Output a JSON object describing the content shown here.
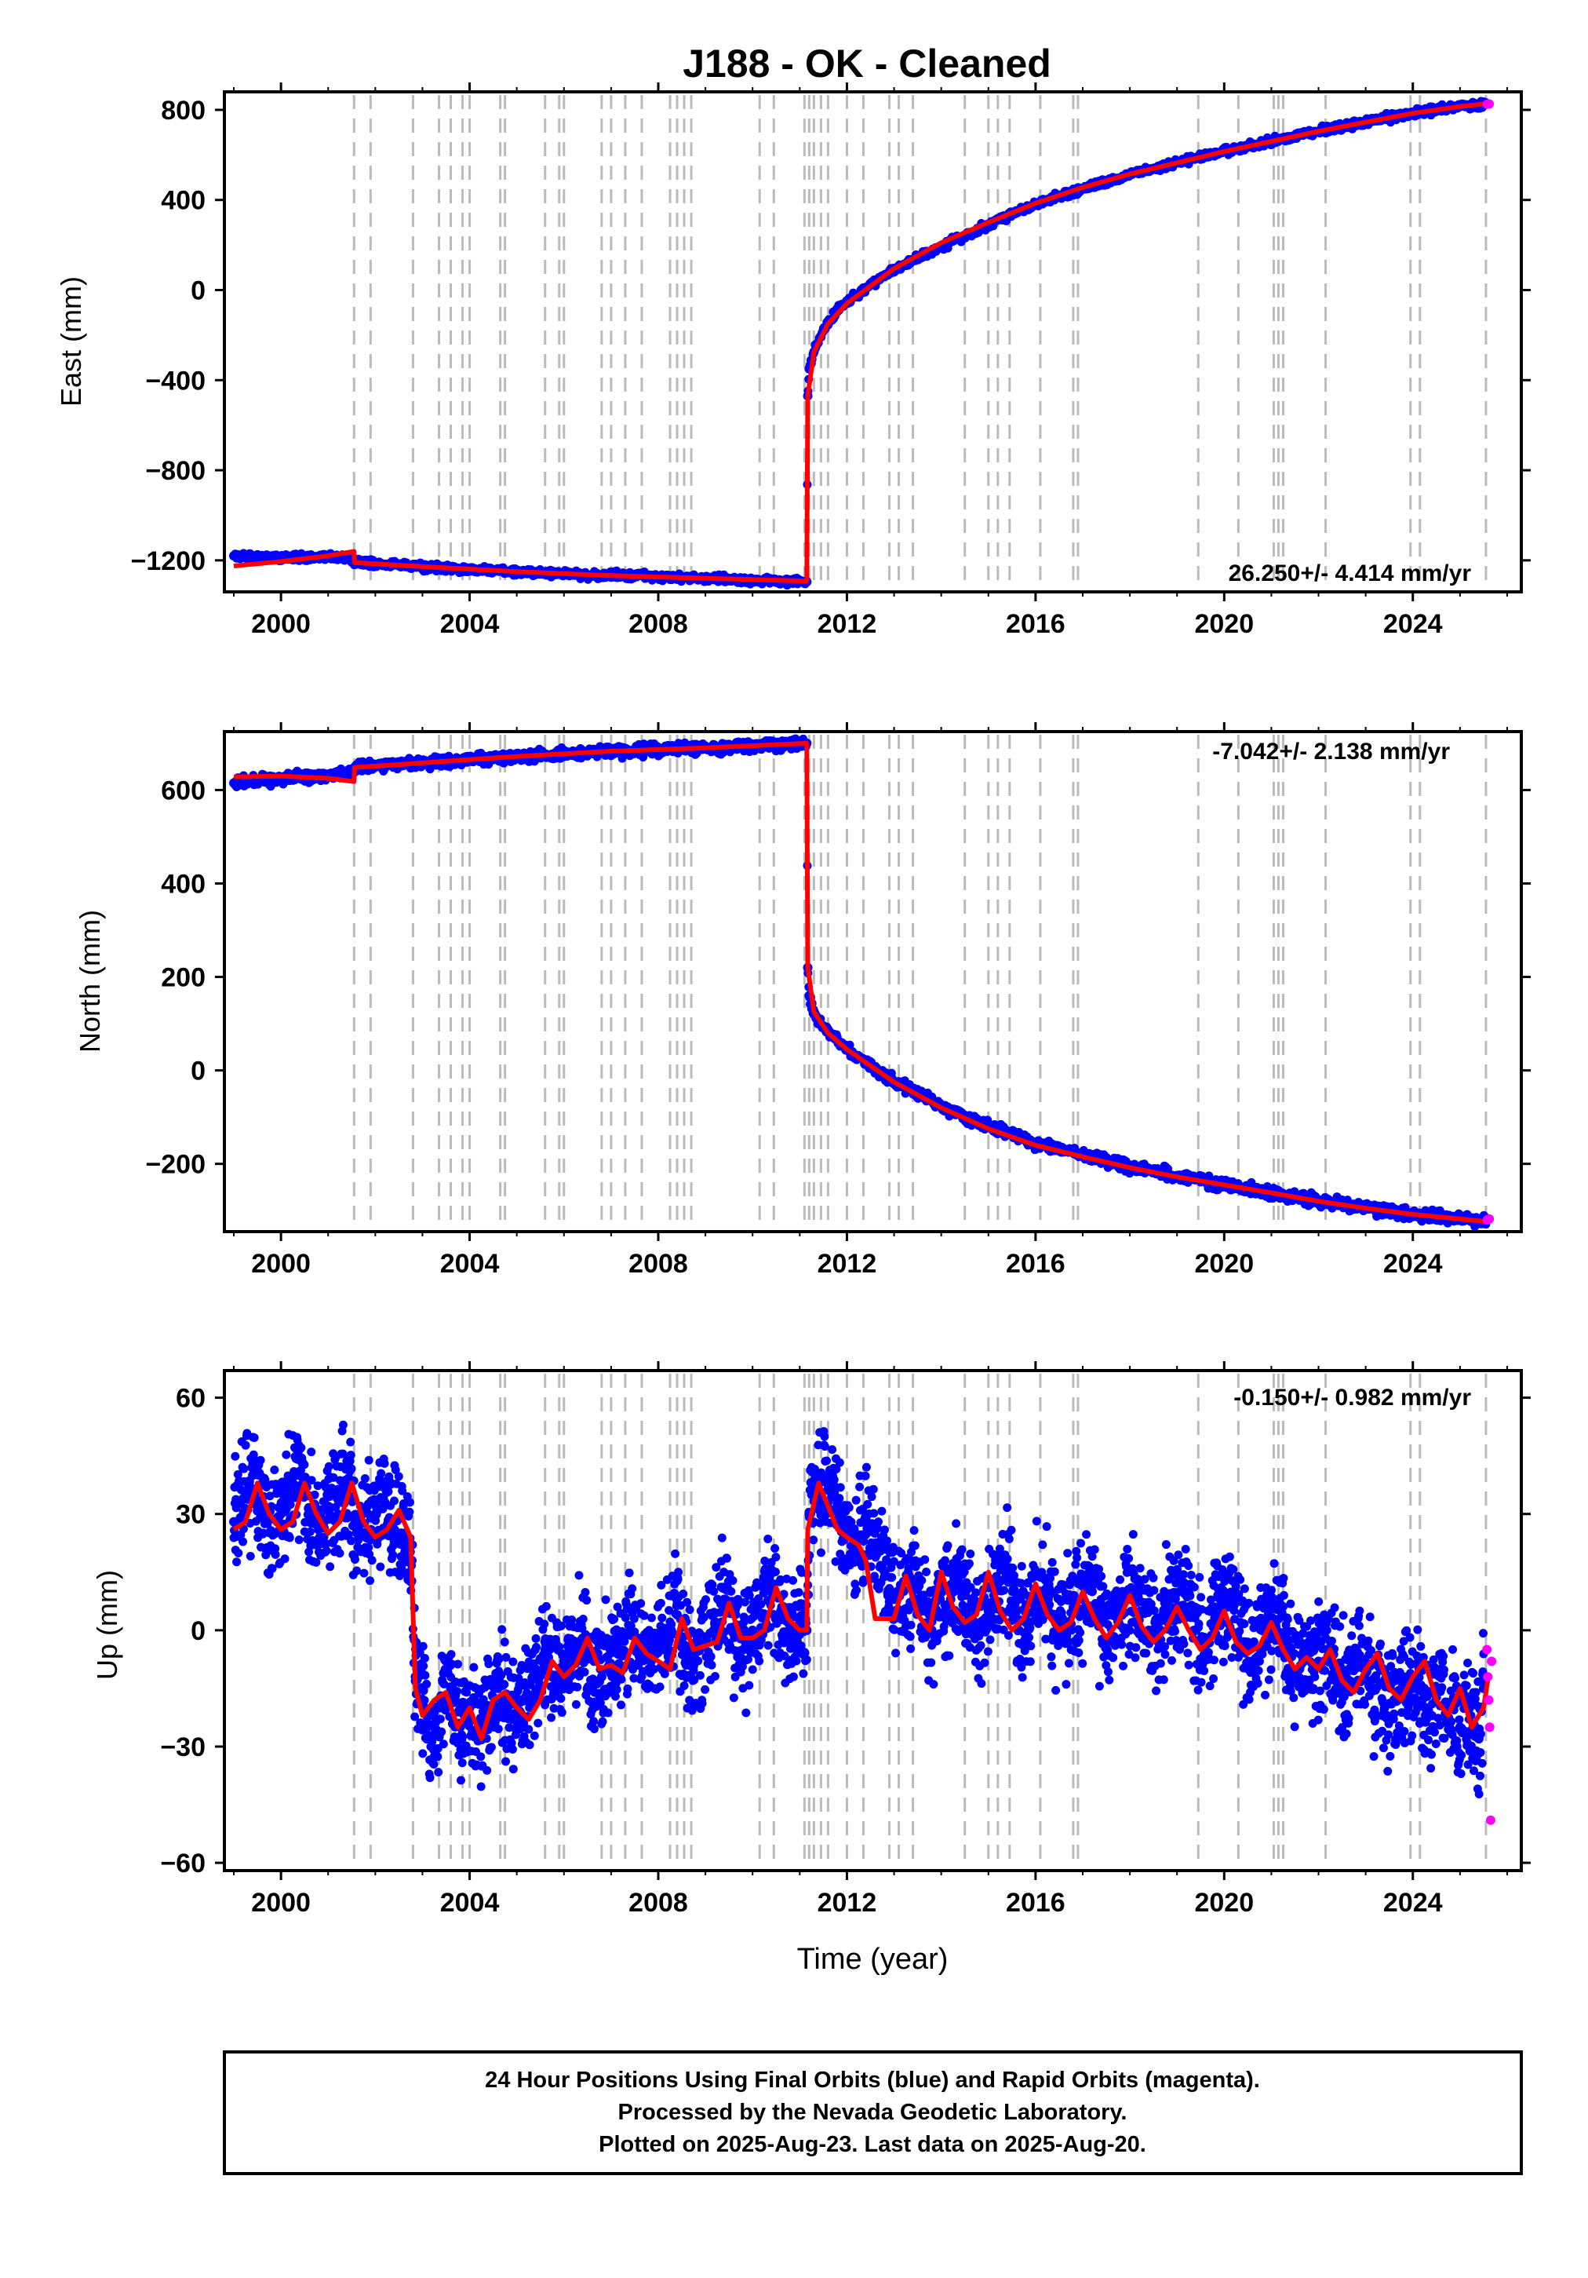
{
  "title": "J188  - OK - Cleaned",
  "colors": {
    "final_orbits": "#0000ff",
    "rapid_orbits": "#ff00ff",
    "model": "#ff0000",
    "event_lines": "#bbbbbb"
  },
  "x_axis": {
    "label": "Time (year)",
    "range": [
      1998.8,
      2026.3
    ],
    "ticks": [
      "2000",
      "2004",
      "2008",
      "2012",
      "2016",
      "2020",
      "2024"
    ],
    "tick_values": [
      2000,
      2004,
      2008,
      2012,
      2016,
      2020,
      2024
    ]
  },
  "event_lines": [
    2001.55,
    2001.9,
    2002.8,
    2003.35,
    2003.6,
    2003.85,
    2004.0,
    2004.65,
    2004.75,
    2005.6,
    2005.9,
    2006.0,
    2006.8,
    2007.0,
    2007.3,
    2007.65,
    2008.25,
    2008.4,
    2008.55,
    2008.7,
    2010.15,
    2010.45,
    2011.1,
    2011.2,
    2011.3,
    2011.45,
    2011.6,
    2012.0,
    2012.35,
    2012.9,
    2013.1,
    2013.4,
    2014.5,
    2015.0,
    2015.2,
    2015.45,
    2016.1,
    2016.8,
    2016.9,
    2019.45,
    2020.3,
    2021.05,
    2021.15,
    2021.25,
    2022.15,
    2023.95,
    2024.15,
    2025.55
  ],
  "chart_data": [
    {
      "type": "scatter",
      "panel": "east",
      "ylabel": "East (mm)",
      "ylim": [
        -1340,
        880
      ],
      "yticks": [
        "800",
        "400",
        "0",
        "−400",
        "−800",
        "−1200"
      ],
      "ytick_values": [
        800,
        400,
        0,
        -400,
        -800,
        -1200
      ],
      "rate_label": "26.250+/- 4.414 mm/yr",
      "rate_position": "bottom-right",
      "series": [
        {
          "name": "Final Orbits",
          "role": "final",
          "x": [
            1999.0,
            1999.5,
            2000.0,
            2000.5,
            2001.0,
            2001.5,
            2001.56,
            2002.5,
            2003.5,
            2004.5,
            2005.5,
            2006.5,
            2007.5,
            2008.5,
            2009.5,
            2010.5,
            2011.15,
            2011.17,
            2011.2,
            2011.3,
            2011.5,
            2011.8,
            2012.2,
            2012.7,
            2013.3,
            2014.0,
            2015.0,
            2016.0,
            2017.0,
            2018.0,
            2019.0,
            2020.0,
            2021.0,
            2022.0,
            2023.0,
            2024.0,
            2025.0,
            2025.55
          ],
          "values": [
            -1180,
            -1182,
            -1190,
            -1188,
            -1185,
            -1190,
            -1210,
            -1220,
            -1235,
            -1245,
            -1255,
            -1265,
            -1270,
            -1275,
            -1285,
            -1290,
            -1295,
            -470,
            -350,
            -275,
            -180,
            -90,
            -20,
            50,
            120,
            190,
            290,
            380,
            450,
            510,
            565,
            615,
            660,
            705,
            745,
            785,
            815,
            825
          ]
        },
        {
          "name": "Rapid Orbits",
          "role": "rapid",
          "x": [
            2025.58,
            2025.62
          ],
          "values": [
            825,
            826
          ]
        },
        {
          "name": "Model",
          "role": "model",
          "x": [
            1999.0,
            2000.0,
            2001.0,
            2001.55,
            2001.56,
            2003.0,
            2005.0,
            2007.0,
            2009.0,
            2011.15,
            2011.17,
            2011.3,
            2011.6,
            2012.0,
            2013.0,
            2014.0,
            2015.0,
            2016.0,
            2017.0,
            2018.0,
            2019.0,
            2020.0,
            2021.0,
            2022.0,
            2023.0,
            2024.0,
            2025.0,
            2025.6
          ],
          "values": [
            -1225,
            -1205,
            -1180,
            -1160,
            -1210,
            -1228,
            -1250,
            -1268,
            -1280,
            -1292,
            -470,
            -275,
            -150,
            -60,
            95,
            210,
            300,
            385,
            455,
            515,
            565,
            615,
            660,
            705,
            745,
            785,
            815,
            828
          ]
        }
      ]
    },
    {
      "type": "scatter",
      "panel": "north",
      "ylabel": "North (mm)",
      "ylim": [
        -345,
        725
      ],
      "yticks": [
        "600",
        "400",
        "200",
        "0",
        "−200"
      ],
      "ytick_values": [
        600,
        400,
        200,
        0,
        -200
      ],
      "rate_label": "-7.042+/- 2.138 mm/yr",
      "rate_position": "top-right",
      "series": [
        {
          "name": "Final Orbits",
          "role": "final",
          "x": [
            1999.0,
            1999.5,
            2000.0,
            2000.5,
            2001.0,
            2001.5,
            2001.56,
            2002.5,
            2003.5,
            2004.5,
            2005.5,
            2006.5,
            2007.5,
            2008.5,
            2009.5,
            2010.5,
            2011.15,
            2011.17,
            2011.2,
            2011.3,
            2011.5,
            2011.8,
            2012.2,
            2012.7,
            2013.3,
            2014.0,
            2015.0,
            2016.0,
            2017.0,
            2018.0,
            2019.0,
            2020.0,
            2021.0,
            2022.0,
            2023.0,
            2024.0,
            2025.0,
            2025.55
          ],
          "values": [
            615,
            622,
            625,
            628,
            630,
            635,
            648,
            655,
            662,
            668,
            674,
            680,
            685,
            688,
            692,
            697,
            700,
            220,
            160,
            120,
            95,
            65,
            30,
            -5,
            -40,
            -75,
            -120,
            -155,
            -180,
            -205,
            -225,
            -245,
            -262,
            -280,
            -295,
            -308,
            -318,
            -322
          ]
        },
        {
          "name": "Rapid Orbits",
          "role": "rapid",
          "x": [
            2025.58,
            2025.62
          ],
          "values": [
            -320,
            -318
          ]
        },
        {
          "name": "Model",
          "role": "model",
          "x": [
            1999.0,
            2000.0,
            2001.0,
            2001.55,
            2001.56,
            2003.0,
            2005.0,
            2007.0,
            2009.0,
            2011.15,
            2011.17,
            2011.3,
            2011.6,
            2012.0,
            2013.0,
            2014.0,
            2015.0,
            2016.0,
            2017.0,
            2018.0,
            2019.0,
            2020.0,
            2021.0,
            2022.0,
            2023.0,
            2024.0,
            2025.0,
            2025.6
          ],
          "values": [
            628,
            630,
            625,
            618,
            648,
            658,
            672,
            683,
            690,
            700,
            220,
            125,
            80,
            45,
            -25,
            -80,
            -125,
            -160,
            -185,
            -208,
            -228,
            -245,
            -262,
            -280,
            -295,
            -308,
            -318,
            -324
          ]
        }
      ]
    },
    {
      "type": "scatter",
      "panel": "up",
      "ylabel": "Up (mm)",
      "ylim": [
        -62,
        67
      ],
      "yticks": [
        "60",
        "30",
        "0",
        "−30",
        "−60"
      ],
      "ytick_values": [
        60,
        30,
        0,
        -30,
        -60
      ],
      "rate_label": "-0.150+/- 0.982 mm/yr",
      "rate_position": "top-right",
      "series": [
        {
          "name": "Final Orbits",
          "role": "final",
          "x": [
            1999.0,
            1999.2,
            1999.4,
            1999.6,
            1999.8,
            2000.0,
            2000.2,
            2000.4,
            2000.6,
            2000.8,
            2001.0,
            2001.2,
            2001.4,
            2001.6,
            2001.8,
            2002.0,
            2002.2,
            2002.4,
            2002.6,
            2002.75,
            2002.85,
            2003.0,
            2003.2,
            2003.4,
            2003.6,
            2003.8,
            2004.0,
            2004.2,
            2004.4,
            2004.6,
            2004.8,
            2005.0,
            2005.2,
            2005.4,
            2005.6,
            2005.8,
            2006.0,
            2006.2,
            2006.4,
            2006.6,
            2006.8,
            2007.0,
            2007.2,
            2007.4,
            2007.6,
            2007.8,
            2008.0,
            2008.2,
            2008.4,
            2008.6,
            2008.8,
            2009.0,
            2009.2,
            2009.4,
            2009.6,
            2009.8,
            2010.0,
            2010.2,
            2010.4,
            2010.6,
            2010.8,
            2011.0,
            2011.15,
            2011.2,
            2011.4,
            2011.6,
            2011.8,
            2012.0,
            2012.2,
            2012.4,
            2012.6,
            2012.8,
            2013.0,
            2013.2,
            2013.4,
            2013.6,
            2013.8,
            2014.0,
            2014.2,
            2014.4,
            2014.6,
            2014.8,
            2015.0,
            2015.2,
            2015.4,
            2015.6,
            2015.8,
            2016.0,
            2016.2,
            2016.4,
            2016.6,
            2016.8,
            2017.0,
            2017.2,
            2017.4,
            2017.6,
            2017.8,
            2018.0,
            2018.2,
            2018.4,
            2018.6,
            2018.8,
            2019.0,
            2019.2,
            2019.4,
            2019.6,
            2019.8,
            2020.0,
            2020.2,
            2020.4,
            2020.6,
            2020.8,
            2021.0,
            2021.2,
            2021.4,
            2021.6,
            2021.8,
            2022.0,
            2022.2,
            2022.4,
            2022.6,
            2022.8,
            2023.0,
            2023.2,
            2023.4,
            2023.6,
            2023.8,
            2024.0,
            2024.2,
            2024.4,
            2024.6,
            2024.8,
            2025.0,
            2025.2,
            2025.4,
            2025.5
          ],
          "values": [
            28,
            34,
            40,
            32,
            25,
            30,
            36,
            41,
            30,
            26,
            32,
            35,
            38,
            28,
            24,
            30,
            33,
            28,
            25,
            22,
            -12,
            -18,
            -30,
            -20,
            -15,
            -25,
            -20,
            -28,
            -22,
            -15,
            -20,
            -25,
            -18,
            -10,
            -5,
            -12,
            -8,
            -5,
            -2,
            -15,
            -12,
            -10,
            -5,
            0,
            -8,
            -10,
            -5,
            -3,
            4,
            -5,
            -8,
            -3,
            2,
            8,
            0,
            -5,
            0,
            4,
            10,
            5,
            -2,
            2,
            0,
            30,
            36,
            40,
            32,
            25,
            22,
            28,
            20,
            15,
            8,
            5,
            12,
            5,
            0,
            10,
            8,
            12,
            3,
            0,
            5,
            12,
            15,
            5,
            2,
            8,
            10,
            3,
            0,
            6,
            8,
            10,
            2,
            -2,
            5,
            8,
            10,
            0,
            -3,
            5,
            6,
            10,
            0,
            -5,
            3,
            6,
            8,
            -3,
            -8,
            0,
            2,
            5,
            -5,
            -10,
            -5,
            -8,
            -5,
            -12,
            -15,
            -8,
            -10,
            -15,
            -20,
            -18,
            -12,
            -15,
            -18,
            -22,
            -15,
            -20,
            -25,
            -20,
            -28,
            -15
          ]
        },
        {
          "name": "Rapid Orbits",
          "role": "rapid",
          "x": [
            2025.57,
            2025.59,
            2025.61,
            2025.63,
            2025.65,
            2025.67
          ],
          "values": [
            -5,
            -12,
            -18,
            -25,
            -49,
            -8
          ]
        },
        {
          "name": "Model",
          "role": "model",
          "x": [
            1999.0,
            1999.25,
            1999.5,
            1999.75,
            2000.0,
            2000.25,
            2000.5,
            2000.75,
            2001.0,
            2001.25,
            2001.5,
            2001.75,
            2002.0,
            2002.25,
            2002.5,
            2002.75,
            2002.85,
            2003.0,
            2003.25,
            2003.5,
            2003.75,
            2004.0,
            2004.25,
            2004.5,
            2004.75,
            2005.0,
            2005.25,
            2005.5,
            2005.75,
            2006.0,
            2006.25,
            2006.5,
            2006.75,
            2007.0,
            2007.25,
            2007.5,
            2007.75,
            2008.0,
            2008.25,
            2008.5,
            2008.75,
            2009.0,
            2009.25,
            2009.5,
            2009.75,
            2010.0,
            2010.25,
            2010.5,
            2010.75,
            2011.0,
            2011.15,
            2011.17,
            2011.4,
            2011.6,
            2011.8,
            2012.0,
            2012.25,
            2012.4,
            2012.6,
            2013.0,
            2013.25,
            2013.5,
            2013.75,
            2014.0,
            2014.25,
            2014.5,
            2014.75,
            2015.0,
            2015.25,
            2015.5,
            2015.75,
            2016.0,
            2016.25,
            2016.5,
            2016.75,
            2017.0,
            2017.25,
            2017.5,
            2017.75,
            2018.0,
            2018.25,
            2018.5,
            2018.75,
            2019.0,
            2019.25,
            2019.5,
            2019.75,
            2020.0,
            2020.25,
            2020.5,
            2020.75,
            2021.0,
            2021.25,
            2021.5,
            2021.75,
            2022.0,
            2022.25,
            2022.5,
            2022.75,
            2023.0,
            2023.25,
            2023.5,
            2023.75,
            2024.0,
            2024.25,
            2024.5,
            2024.75,
            2025.0,
            2025.25,
            2025.5,
            2025.6
          ],
          "values": [
            26,
            28,
            38,
            30,
            26,
            28,
            38,
            30,
            25,
            28,
            38,
            28,
            24,
            26,
            31,
            24,
            -15,
            -22,
            -18,
            -16,
            -25,
            -20,
            -28,
            -18,
            -16,
            -20,
            -23,
            -18,
            -8,
            -12,
            -9,
            -2,
            -10,
            -9,
            -11,
            -2,
            -6,
            -8,
            -10,
            3,
            -5,
            -4,
            -3,
            7,
            -2,
            -2,
            0,
            11,
            3,
            0,
            0,
            26,
            38,
            32,
            26,
            24,
            22,
            18,
            3,
            3,
            14,
            4,
            0,
            15,
            6,
            2,
            4,
            15,
            5,
            0,
            3,
            12,
            4,
            0,
            2,
            10,
            3,
            -2,
            2,
            9,
            1,
            -3,
            0,
            6,
            0,
            -5,
            -2,
            5,
            -3,
            -6,
            -4,
            2,
            -5,
            -10,
            -7,
            -10,
            -5,
            -13,
            -16,
            -10,
            -6,
            -15,
            -18,
            -12,
            -8,
            -18,
            -22,
            -15,
            -25,
            -20,
            -12
          ]
        }
      ]
    }
  ],
  "footer": {
    "line1": "24 Hour Positions Using Final Orbits (blue) and Rapid Orbits (magenta).",
    "line2": "Processed by the Nevada Geodetic Laboratory.",
    "line3": "Plotted on 2025-Aug-23. Last data on 2025-Aug-20."
  }
}
